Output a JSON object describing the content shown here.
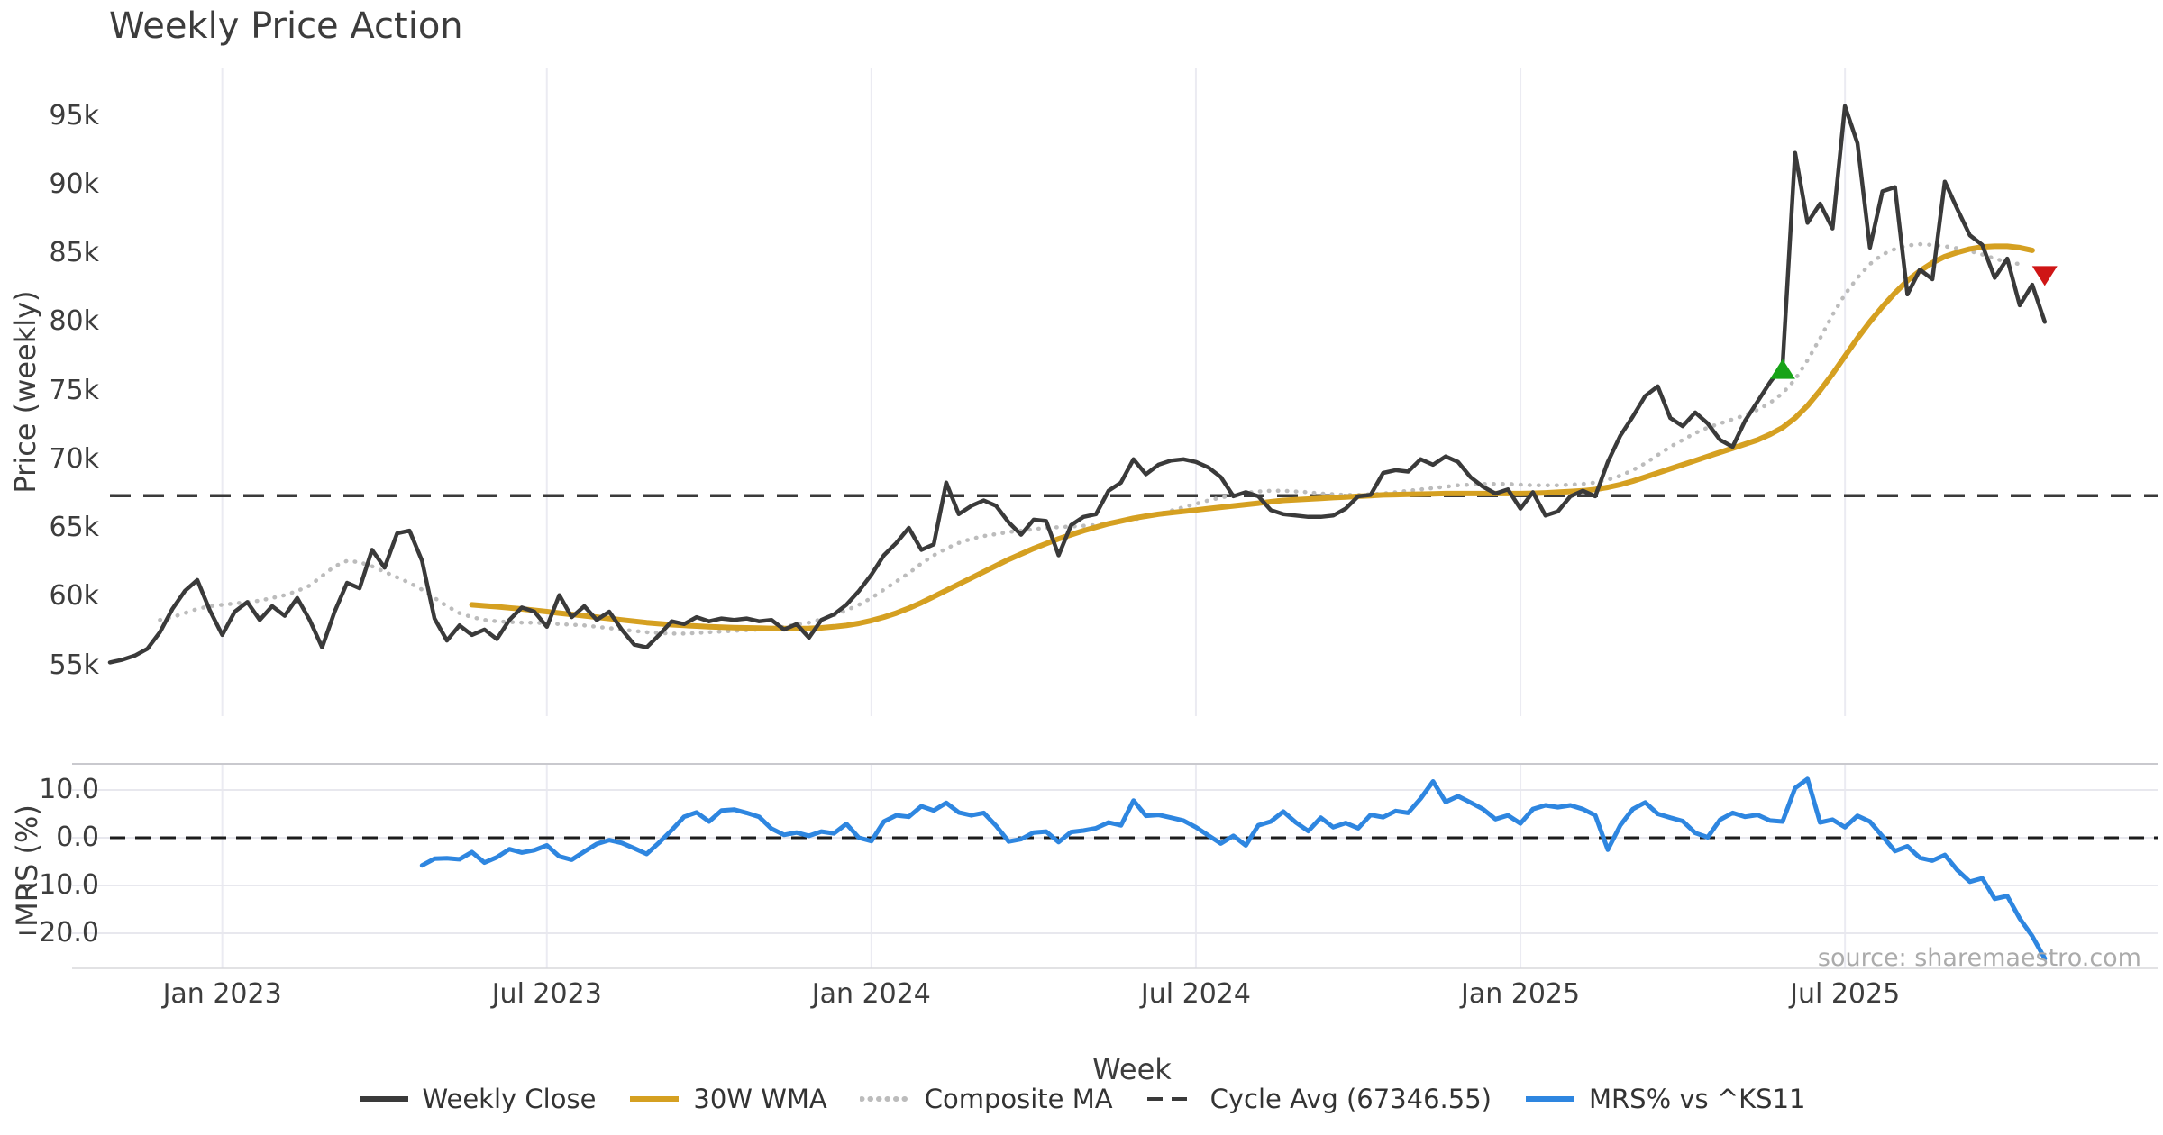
{
  "title": "Weekly Price Action",
  "source_note": "source: sharemaestro.com",
  "axes": {
    "x_label": "Week",
    "price_label": "Price (weekly)",
    "mrs_label": "MRS (%)",
    "price_ticks": [
      {
        "label": "95k",
        "value": 95
      },
      {
        "label": "90k",
        "value": 90
      },
      {
        "label": "85k",
        "value": 85
      },
      {
        "label": "80k",
        "value": 80
      },
      {
        "label": "75k",
        "value": 75
      },
      {
        "label": "70k",
        "value": 70
      },
      {
        "label": "65k",
        "value": 65
      },
      {
        "label": "60k",
        "value": 60
      },
      {
        "label": "55k",
        "value": 55
      }
    ],
    "mrs_ticks": [
      {
        "label": "10.0",
        "value": 10
      },
      {
        "label": "0.0",
        "value": 0
      },
      {
        "label": "−10.0",
        "value": -10
      },
      {
        "label": "−20.0",
        "value": -20
      }
    ],
    "x_ticks": [
      {
        "label": "Jan 2023",
        "week": 9
      },
      {
        "label": "Jul 2023",
        "week": 35
      },
      {
        "label": "Jan 2024",
        "week": 61
      },
      {
        "label": "Jul 2024",
        "week": 87
      },
      {
        "label": "Jan 2025",
        "week": 113
      },
      {
        "label": "Jul 2025",
        "week": 139
      }
    ]
  },
  "legend": {
    "items": [
      {
        "label": "Weekly Close",
        "color": "#3a3a3a",
        "swatch": "solid"
      },
      {
        "label": "30W WMA",
        "color": "#d5a021",
        "swatch": "solid"
      },
      {
        "label": "Composite MA",
        "color": "#bcbcbc",
        "swatch": "dotted"
      },
      {
        "label": "Cycle Avg (67346.55)",
        "color": "#3a3a3a",
        "swatch": "dashed"
      },
      {
        "label": "MRS% vs ^KS11",
        "color": "#2e86e0",
        "swatch": "solid"
      }
    ]
  },
  "chart_data": {
    "type": "line",
    "x_unit": "week",
    "panels": [
      {
        "id": "price",
        "ylabel": "Price (weekly)",
        "y_unit": "thousands",
        "ylim_k": [
          53,
          97
        ],
        "grid": "vertical",
        "cycle_avg": {
          "label": "Cycle Avg",
          "value": 67346.55,
          "value_k": 67.34655,
          "color": "#3a3a3a",
          "style": "dashed"
        },
        "markers": [
          {
            "name": "buy-signal",
            "shape": "triangle-up",
            "color": "#17a317",
            "week": 134,
            "value_k": 76.5
          },
          {
            "name": "sell-signal",
            "shape": "triangle-down",
            "color": "#cf1515",
            "week": 155,
            "value_k": 83.4
          }
        ],
        "series": [
          {
            "name": "Composite MA",
            "color": "#bcbcbc",
            "style": "dotted",
            "width": 4.5,
            "start_week": 4,
            "values_k": [
              58.3,
              58.5,
              58.8,
              59.1,
              59.3,
              59.4,
              59.5,
              59.6,
              59.7,
              59.9,
              60.1,
              60.4,
              60.8,
              61.5,
              62.2,
              62.6,
              62.5,
              62.2,
              61.8,
              61.4,
              61.0,
              60.5,
              59.9,
              59.3,
              58.8,
              58.5,
              58.3,
              58.2,
              58.15,
              58.1,
              58.1,
              58.05,
              58.0,
              57.95,
              57.9,
              57.8,
              57.7,
              57.6,
              57.5,
              57.4,
              57.35,
              57.3,
              57.3,
              57.35,
              57.4,
              57.45,
              57.5,
              57.55,
              57.6,
              57.7,
              57.8,
              57.95,
              58.1,
              58.35,
              58.65,
              59.0,
              59.4,
              59.9,
              60.5,
              61.1,
              61.7,
              62.4,
              63.0,
              63.5,
              63.9,
              64.2,
              64.4,
              64.55,
              64.7,
              64.8,
              64.9,
              65.0,
              65.05,
              65.1,
              65.15,
              65.2,
              65.3,
              65.45,
              65.6,
              65.8,
              66.0,
              66.25,
              66.5,
              66.75,
              67.0,
              67.2,
              67.4,
              67.55,
              67.65,
              67.7,
              67.7,
              67.65,
              67.6,
              67.5,
              67.45,
              67.4,
              67.4,
              67.45,
              67.5,
              67.6,
              67.7,
              67.8,
              67.9,
              68.0,
              68.1,
              68.15,
              68.2,
              68.2,
              68.2,
              68.15,
              68.1,
              68.1,
              68.1,
              68.15,
              68.2,
              68.3,
              68.5,
              68.8,
              69.2,
              69.7,
              70.3,
              70.9,
              71.4,
              71.9,
              72.3,
              72.6,
              72.9,
              73.2,
              73.6,
              74.1,
              74.8,
              75.8,
              77.2,
              78.8,
              80.5,
              82.0,
              83.2,
              84.2,
              84.9,
              85.3,
              85.55,
              85.65,
              85.6,
              85.5,
              85.35,
              85.15,
              84.9,
              84.6,
              84.35,
              84.2
            ]
          },
          {
            "name": "30W WMA",
            "color": "#d5a021",
            "style": "solid",
            "width": 6,
            "start_week": 29,
            "values_k": [
              59.4,
              59.33,
              59.26,
              59.18,
              59.1,
              59.0,
              58.9,
              58.8,
              58.7,
              58.6,
              58.5,
              58.4,
              58.3,
              58.2,
              58.1,
              58.02,
              57.95,
              57.9,
              57.85,
              57.8,
              57.77,
              57.74,
              57.72,
              57.7,
              57.68,
              57.67,
              57.67,
              57.68,
              57.72,
              57.8,
              57.9,
              58.05,
              58.25,
              58.5,
              58.8,
              59.15,
              59.55,
              60.0,
              60.45,
              60.9,
              61.35,
              61.8,
              62.25,
              62.7,
              63.1,
              63.5,
              63.85,
              64.2,
              64.5,
              64.8,
              65.05,
              65.3,
              65.5,
              65.7,
              65.85,
              66.0,
              66.1,
              66.2,
              66.3,
              66.4,
              66.5,
              66.6,
              66.7,
              66.8,
              66.9,
              67.0,
              67.05,
              67.1,
              67.15,
              67.2,
              67.25,
              67.3,
              67.35,
              67.4,
              67.42,
              67.44,
              67.46,
              67.48,
              67.5,
              67.5,
              67.5,
              67.5,
              67.5,
              67.5,
              67.5,
              67.52,
              67.55,
              67.6,
              67.65,
              67.7,
              67.8,
              67.95,
              68.15,
              68.4,
              68.7,
              69.0,
              69.3,
              69.6,
              69.9,
              70.2,
              70.5,
              70.8,
              71.1,
              71.4,
              71.8,
              72.3,
              73.0,
              73.9,
              75.0,
              76.2,
              77.5,
              78.8,
              80.0,
              81.1,
              82.1,
              83.0,
              83.7,
              84.3,
              84.75,
              85.05,
              85.3,
              85.45,
              85.5,
              85.5,
              85.4,
              85.2
            ]
          },
          {
            "name": "Weekly Close",
            "color": "#3a3a3a",
            "style": "solid",
            "width": 4.5,
            "start_week": 0,
            "values_k": [
              55.2,
              55.4,
              55.7,
              56.2,
              57.4,
              59.1,
              60.4,
              61.2,
              59.0,
              57.2,
              58.9,
              59.6,
              58.3,
              59.3,
              58.6,
              59.9,
              58.3,
              56.3,
              58.9,
              61.0,
              60.6,
              63.4,
              62.1,
              64.6,
              64.8,
              62.6,
              58.4,
              56.8,
              57.9,
              57.2,
              57.6,
              56.9,
              58.3,
              59.2,
              58.9,
              57.8,
              60.1,
              58.5,
              59.3,
              58.3,
              58.9,
              57.6,
              56.5,
              56.3,
              57.2,
              58.2,
              58.0,
              58.5,
              58.2,
              58.4,
              58.3,
              58.4,
              58.2,
              58.3,
              57.6,
              58.0,
              57.0,
              58.3,
              58.7,
              59.4,
              60.4,
              61.6,
              63.0,
              63.9,
              65.0,
              63.4,
              63.8,
              68.3,
              66.0,
              66.6,
              67.0,
              66.6,
              65.4,
              64.5,
              65.6,
              65.5,
              63.0,
              65.2,
              65.8,
              66.0,
              67.7,
              68.3,
              70.0,
              68.9,
              69.6,
              69.9,
              70.0,
              69.8,
              69.4,
              68.7,
              67.3,
              67.6,
              67.3,
              66.3,
              66.0,
              65.9,
              65.8,
              65.8,
              65.9,
              66.4,
              67.3,
              67.4,
              69.0,
              69.2,
              69.1,
              70.0,
              69.6,
              70.2,
              69.8,
              68.7,
              68.0,
              67.5,
              67.8,
              66.4,
              67.6,
              65.9,
              66.2,
              67.3,
              67.7,
              67.3,
              69.8,
              71.7,
              73.1,
              74.6,
              75.3,
              73.0,
              72.4,
              73.4,
              72.6,
              71.4,
              70.9,
              72.8,
              74.2,
              75.6,
              76.8,
              92.3,
              87.2,
              88.6,
              86.8,
              95.7,
              93.0,
              85.4,
              89.5,
              89.8,
              82.0,
              83.8,
              83.1,
              90.2,
              88.2,
              86.3,
              85.6,
              83.2,
              84.6,
              81.2,
              82.7,
              80.0
            ]
          }
        ]
      },
      {
        "id": "mrs",
        "ylabel": "MRS (%)",
        "y_unit": "percent",
        "ylim": [
          -27,
          15
        ],
        "grid": "both",
        "zero_line": {
          "value": 0,
          "color": "#1c1c1c",
          "style": "dashed"
        },
        "series": [
          {
            "name": "MRS% vs ^KS11",
            "color": "#2e86e0",
            "style": "solid",
            "width": 5,
            "start_week": 25,
            "values": [
              -5.8,
              -4.4,
              -4.3,
              -4.5,
              -3.0,
              -5.2,
              -4.1,
              -2.4,
              -3.1,
              -2.6,
              -1.6,
              -3.9,
              -4.6,
              -2.9,
              -1.3,
              -0.5,
              -1.1,
              -2.2,
              -3.4,
              -1.0,
              1.6,
              4.4,
              5.3,
              3.4,
              5.7,
              5.9,
              5.2,
              4.4,
              1.9,
              0.6,
              1.1,
              0.4,
              1.3,
              0.9,
              2.9,
              0.0,
              -0.7,
              3.4,
              4.7,
              4.4,
              6.6,
              5.7,
              7.3,
              5.3,
              4.7,
              5.2,
              2.5,
              -0.8,
              -0.3,
              1.1,
              1.3,
              -0.9,
              1.2,
              1.5,
              2.0,
              3.2,
              2.6,
              7.8,
              4.6,
              4.8,
              4.2,
              3.6,
              2.2,
              0.5,
              -1.2,
              0.4,
              -1.6,
              2.6,
              3.4,
              5.5,
              3.2,
              1.4,
              4.2,
              2.2,
              3.1,
              2.0,
              4.8,
              4.3,
              5.6,
              5.2,
              8.2,
              11.8,
              7.5,
              8.7,
              7.4,
              6.0,
              3.9,
              4.7,
              3.0,
              6.0,
              6.8,
              6.4,
              6.8,
              6.0,
              4.7,
              -2.5,
              2.6,
              6.0,
              7.4,
              5.0,
              4.2,
              3.5,
              1.0,
              0.1,
              3.8,
              5.2,
              4.4,
              4.8,
              3.6,
              3.4,
              10.4,
              12.3,
              3.2,
              3.8,
              2.2,
              4.6,
              3.4,
              0.3,
              -2.8,
              -1.8,
              -4.2,
              -4.8,
              -3.6,
              -6.8,
              -9.2,
              -8.5,
              -12.8,
              -12.2,
              -16.9,
              -20.6,
              -25.3
            ]
          }
        ]
      }
    ]
  }
}
